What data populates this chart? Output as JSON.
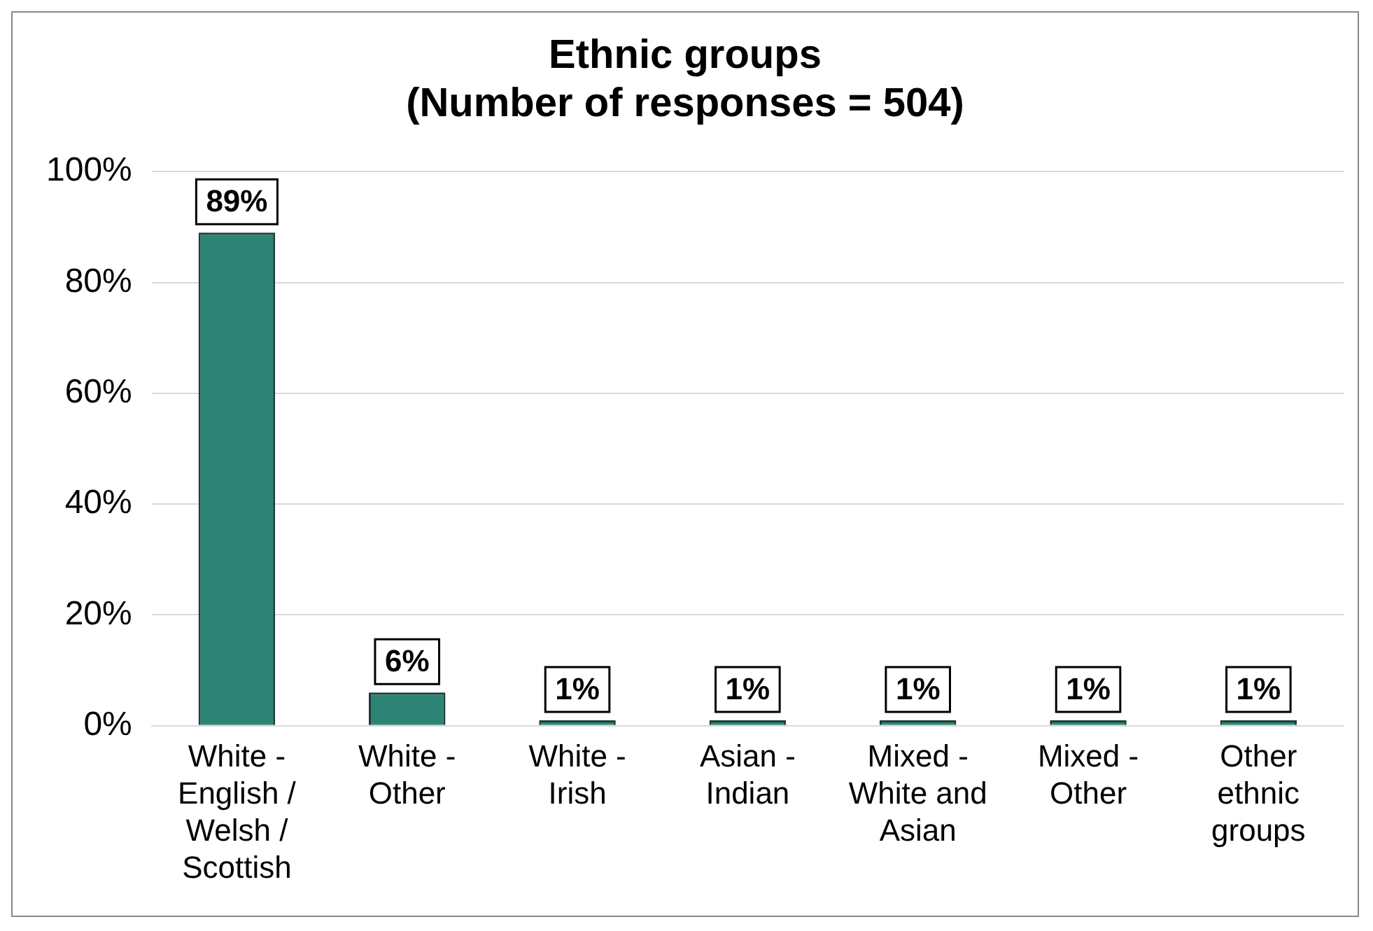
{
  "chart_data": {
    "type": "bar",
    "title": "Ethnic groups\n(Number of responses = 504)",
    "categories": [
      "White - English / Welsh / Scottish",
      "White - Other",
      "White - Irish",
      "Asian - Indian",
      "Mixed - White and Asian",
      "Mixed - Other",
      "Other ethnic groups"
    ],
    "values": [
      89,
      6,
      1,
      1,
      1,
      1,
      1
    ],
    "value_labels": [
      "89%",
      "6%",
      "1%",
      "1%",
      "1%",
      "1%",
      "1%"
    ],
    "color": "#2e8474",
    "ylim": [
      0,
      100
    ],
    "yticks": [
      {
        "value": 0,
        "label": "0%"
      },
      {
        "value": 20,
        "label": "20%"
      },
      {
        "value": 40,
        "label": "40%"
      },
      {
        "value": 60,
        "label": "60%"
      },
      {
        "value": 80,
        "label": "80%"
      },
      {
        "value": 100,
        "label": "100%"
      }
    ],
    "grid": "y",
    "legend": false
  }
}
